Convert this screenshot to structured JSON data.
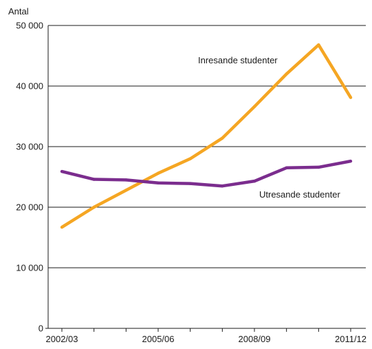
{
  "chart_data": {
    "type": "line",
    "ylabel": "Antal",
    "ylim": [
      0,
      50000
    ],
    "yticks": [
      0,
      10000,
      20000,
      30000,
      40000,
      50000
    ],
    "ytick_labels": [
      "0",
      "10 000",
      "20 000",
      "30 000",
      "40 000",
      "50 000"
    ],
    "x": [
      "2002/03",
      "2003/04",
      "2004/05",
      "2005/06",
      "2006/07",
      "2007/08",
      "2008/09",
      "2009/10",
      "2010/11",
      "2011/12"
    ],
    "xtick_labels": [
      "2002/03",
      "2005/06",
      "2008/09",
      "2011/12"
    ],
    "grid": "horizontal",
    "series": [
      {
        "name": "Inresande studenter",
        "color": "#F5A623",
        "values": [
          16700,
          20000,
          22800,
          25600,
          28000,
          31400,
          36600,
          42000,
          46800,
          38100
        ]
      },
      {
        "name": "Utresande studenter",
        "color": "#7B2D8E",
        "values": [
          25900,
          24600,
          24500,
          24000,
          23900,
          23500,
          24300,
          26500,
          26600,
          27600
        ]
      }
    ]
  }
}
